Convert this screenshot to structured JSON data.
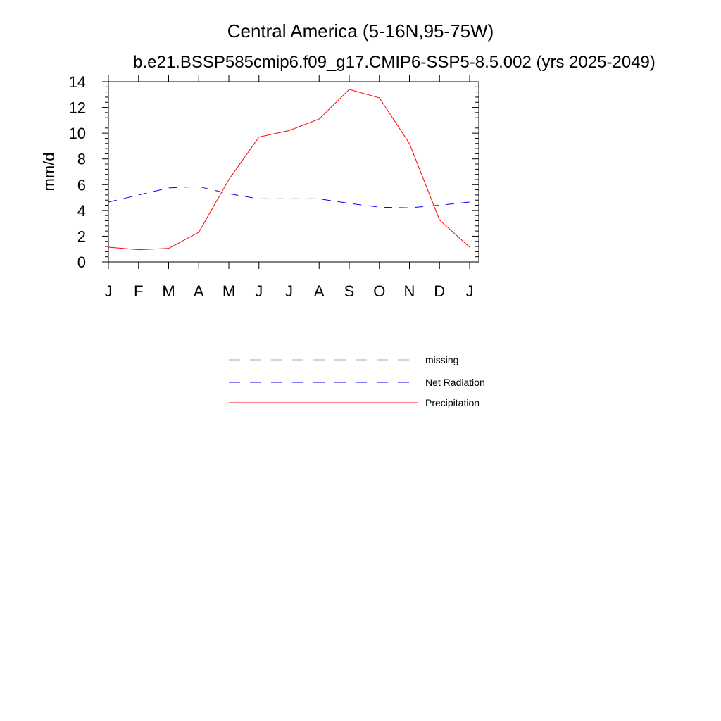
{
  "chart_data": {
    "type": "line",
    "title": "Central America (5-16N,95-75W)",
    "subtitle": "b.e21.BSSP585cmip6.f09_g17.CMIP6-SSP5-8.5.002 (yrs 2025-2049)",
    "ylabel": "mm/d",
    "xlabel": "",
    "ylim": [
      0,
      14
    ],
    "y_ticks": [
      0,
      2,
      4,
      6,
      8,
      10,
      12,
      14
    ],
    "categories": [
      "J",
      "F",
      "M",
      "A",
      "M",
      "J",
      "J",
      "A",
      "S",
      "O",
      "N",
      "D",
      "J"
    ],
    "series": [
      {
        "name": "Net Radiation",
        "color": "#0000ff",
        "dash": "dashed",
        "values": [
          4.65,
          5.2,
          5.75,
          5.85,
          5.3,
          4.9,
          4.9,
          4.9,
          4.55,
          4.25,
          4.2,
          4.4,
          4.65
        ]
      },
      {
        "name": "Precipitation",
        "color": "#ff0000",
        "dash": "solid",
        "values": [
          1.15,
          0.95,
          1.05,
          2.3,
          6.4,
          9.7,
          10.2,
          11.1,
          13.4,
          12.75,
          9.2,
          3.25,
          1.15
        ]
      }
    ],
    "grid": false,
    "legend_position": "bottom",
    "legend": [
      {
        "label": "missing",
        "color": "#aaaaaa",
        "dash": "dashed"
      },
      {
        "label": "Net Radiation",
        "color": "#0000ff",
        "dash": "dashed"
      },
      {
        "label": "Precipitation",
        "color": "#ff0000",
        "dash": "solid"
      }
    ]
  }
}
